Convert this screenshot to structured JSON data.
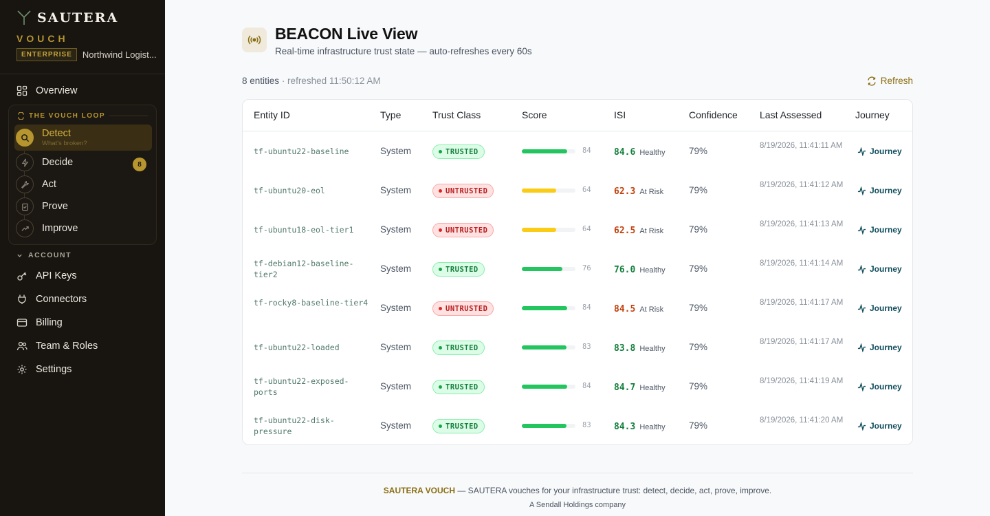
{
  "sidebar": {
    "brand": "SAUTERA",
    "product": "VOUCH",
    "tier": "ENTERPRISE",
    "org": "Northwind Logist...",
    "overview": "Overview",
    "loop_title": "THE VOUCH LOOP",
    "loop": [
      {
        "label": "Detect",
        "sub": "What's broken?",
        "icon": "search-icon"
      },
      {
        "label": "Decide",
        "badge": "8",
        "icon": "bolt-icon"
      },
      {
        "label": "Act",
        "icon": "wrench-icon"
      },
      {
        "label": "Prove",
        "icon": "clipboard-check-icon"
      },
      {
        "label": "Improve",
        "icon": "trending-up-icon"
      }
    ],
    "account_title": "ACCOUNT",
    "account": [
      {
        "label": "API Keys",
        "icon": "key-icon"
      },
      {
        "label": "Connectors",
        "icon": "plug-icon"
      },
      {
        "label": "Billing",
        "icon": "credit-card-icon"
      },
      {
        "label": "Team & Roles",
        "icon": "users-icon"
      },
      {
        "label": "Settings",
        "icon": "gear-icon"
      }
    ]
  },
  "header": {
    "title": "BEACON Live View",
    "subtitle": "Real-time infrastructure trust state — auto-refreshes every 60s",
    "entity_count": "8 entities",
    "refreshed": "· refreshed 11:50:12 AM",
    "refresh_label": "Refresh"
  },
  "table": {
    "columns": [
      "Entity ID",
      "Type",
      "Trust Class",
      "Score",
      "ISI",
      "Confidence",
      "Last Assessed",
      "Journey"
    ],
    "rows": [
      {
        "entity": "tf-ubuntu22-baseline",
        "type": "System",
        "trust": "TRUSTED",
        "score": 84,
        "isi": "84.6",
        "isi_label": "Healthy",
        "confidence": "79%",
        "assessed": "8/19/2026, 11:41:11 AM",
        "journey": "Journey"
      },
      {
        "entity": "tf-ubuntu20-eol",
        "type": "System",
        "trust": "UNTRUSTED",
        "score": 64,
        "isi": "62.3",
        "isi_label": "At Risk",
        "confidence": "79%",
        "assessed": "8/19/2026, 11:41:12 AM",
        "journey": "Journey"
      },
      {
        "entity": "tf-ubuntu18-eol-tier1",
        "type": "System",
        "trust": "UNTRUSTED",
        "score": 64,
        "isi": "62.5",
        "isi_label": "At Risk",
        "confidence": "79%",
        "assessed": "8/19/2026, 11:41:13 AM",
        "journey": "Journey"
      },
      {
        "entity": "tf-debian12-baseline-tier2",
        "type": "System",
        "trust": "TRUSTED",
        "score": 76,
        "isi": "76.0",
        "isi_label": "Healthy",
        "confidence": "79%",
        "assessed": "8/19/2026, 11:41:14 AM",
        "journey": "Journey"
      },
      {
        "entity": "tf-rocky8-baseline-tier4",
        "type": "System",
        "trust": "UNTRUSTED",
        "score": 84,
        "isi": "84.5",
        "isi_label": "At Risk",
        "confidence": "79%",
        "assessed": "8/19/2026, 11:41:17 AM",
        "journey": "Journey"
      },
      {
        "entity": "tf-ubuntu22-loaded",
        "type": "System",
        "trust": "TRUSTED",
        "score": 83,
        "isi": "83.8",
        "isi_label": "Healthy",
        "confidence": "79%",
        "assessed": "8/19/2026, 11:41:17 AM",
        "journey": "Journey"
      },
      {
        "entity": "tf-ubuntu22-exposed-ports",
        "type": "System",
        "trust": "TRUSTED",
        "score": 84,
        "isi": "84.7",
        "isi_label": "Healthy",
        "confidence": "79%",
        "assessed": "8/19/2026, 11:41:19 AM",
        "journey": "Journey"
      },
      {
        "entity": "tf-ubuntu22-disk-pressure",
        "type": "System",
        "trust": "TRUSTED",
        "score": 83,
        "isi": "84.3",
        "isi_label": "Healthy",
        "confidence": "79%",
        "assessed": "8/19/2026, 11:41:20 AM",
        "journey": "Journey"
      }
    ]
  },
  "footer": {
    "brand": "SAUTERA VOUCH",
    "tagline": " — SAUTERA vouches for your infrastructure trust: detect, decide, act, prove, improve.",
    "company": "A Sendall Holdings company"
  },
  "colors": {
    "accent_gold": "#b8962f",
    "trusted_green": "#15803d",
    "untrusted_red": "#b91c1c",
    "bar_green": "#22c55e",
    "bar_yellow": "#facc15"
  }
}
